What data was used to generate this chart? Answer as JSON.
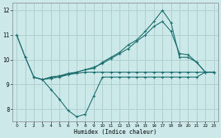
{
  "bg_color": "#cce8e8",
  "grid_color": "#aacccc",
  "line_color": "#1a6e6e",
  "xlabel": "Humidex (Indice chaleur)",
  "xlim": [
    -0.5,
    23.5
  ],
  "ylim": [
    7.5,
    12.3
  ],
  "yticks": [
    8,
    9,
    10,
    11,
    12
  ],
  "xticks": [
    0,
    1,
    2,
    3,
    4,
    5,
    6,
    7,
    8,
    9,
    10,
    11,
    12,
    13,
    14,
    15,
    16,
    17,
    18,
    19,
    20,
    21,
    22,
    23
  ],
  "lines": [
    {
      "x": [
        0,
        1,
        2,
        3,
        4,
        5,
        6,
        7,
        8,
        9,
        10,
        11,
        12,
        13,
        14,
        15,
        16,
        17,
        18,
        19,
        20,
        21,
        22,
        23
      ],
      "y": [
        11.0,
        10.1,
        9.3,
        9.2,
        8.8,
        8.4,
        7.95,
        7.7,
        7.8,
        8.55,
        9.3,
        9.3,
        9.3,
        9.3,
        9.3,
        9.3,
        9.3,
        9.3,
        9.3,
        9.3,
        9.3,
        9.3,
        9.5,
        9.5
      ]
    },
    {
      "x": [
        0,
        1,
        2,
        3,
        4,
        5,
        6,
        7,
        8,
        9,
        10,
        11,
        12,
        13,
        14,
        15,
        16,
        17,
        18,
        19,
        20,
        21,
        22,
        23
      ],
      "y": [
        11.0,
        10.1,
        9.3,
        9.2,
        9.3,
        9.35,
        9.4,
        9.45,
        9.5,
        9.5,
        9.5,
        9.5,
        9.5,
        9.5,
        9.5,
        9.5,
        9.5,
        9.5,
        9.5,
        9.5,
        9.5,
        9.5,
        9.5,
        9.5
      ]
    },
    {
      "x": [
        2,
        3,
        4,
        5,
        6,
        7,
        8,
        9,
        10,
        11,
        12,
        13,
        14,
        15,
        16,
        17,
        18,
        19,
        20,
        21,
        22,
        23
      ],
      "y": [
        9.3,
        9.2,
        9.25,
        9.3,
        9.4,
        9.5,
        9.6,
        9.7,
        9.85,
        10.05,
        10.25,
        10.45,
        10.75,
        11.0,
        11.35,
        11.55,
        11.15,
        10.25,
        10.2,
        9.9,
        9.5,
        9.5
      ]
    },
    {
      "x": [
        2,
        3,
        4,
        5,
        6,
        7,
        8,
        9,
        10,
        11,
        12,
        13,
        14,
        15,
        16,
        17,
        18,
        19,
        20,
        21,
        22,
        23
      ],
      "y": [
        9.3,
        9.2,
        9.3,
        9.35,
        9.45,
        9.5,
        9.6,
        9.65,
        9.9,
        10.1,
        10.3,
        10.6,
        10.8,
        11.15,
        11.55,
        12.0,
        11.5,
        10.1,
        10.1,
        9.9,
        9.5,
        9.5
      ]
    }
  ]
}
